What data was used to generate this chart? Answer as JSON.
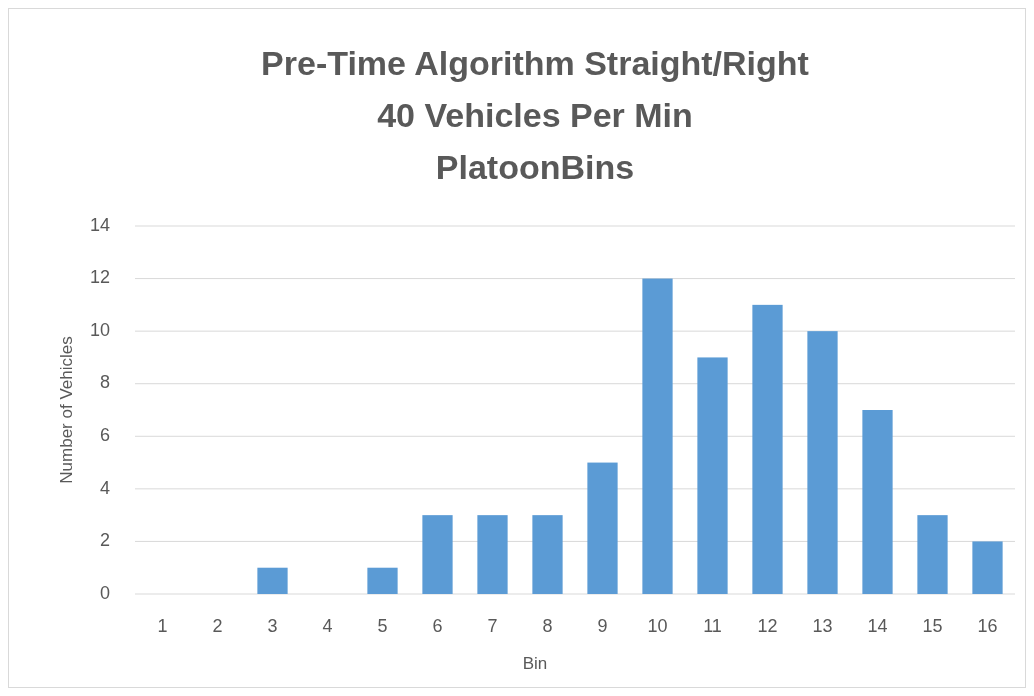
{
  "chart_data": {
    "type": "bar",
    "title": "Pre-Time Algorithm Straight/Right\n40 Vehicles Per Min\nPlatoonBins",
    "xlabel": "Bin",
    "ylabel": "Number of Vehicles",
    "categories": [
      "1",
      "2",
      "3",
      "4",
      "5",
      "6",
      "7",
      "8",
      "9",
      "10",
      "11",
      "12",
      "13",
      "14",
      "15",
      "16"
    ],
    "values": [
      0,
      0,
      1,
      0,
      1,
      3,
      3,
      3,
      5,
      12,
      9,
      11,
      10,
      7,
      3,
      2
    ],
    "color": "#5b9bd5",
    "ylim": [
      0,
      14
    ],
    "yticks": [
      0,
      2,
      4,
      6,
      8,
      10,
      12,
      14
    ],
    "grid": "y"
  }
}
